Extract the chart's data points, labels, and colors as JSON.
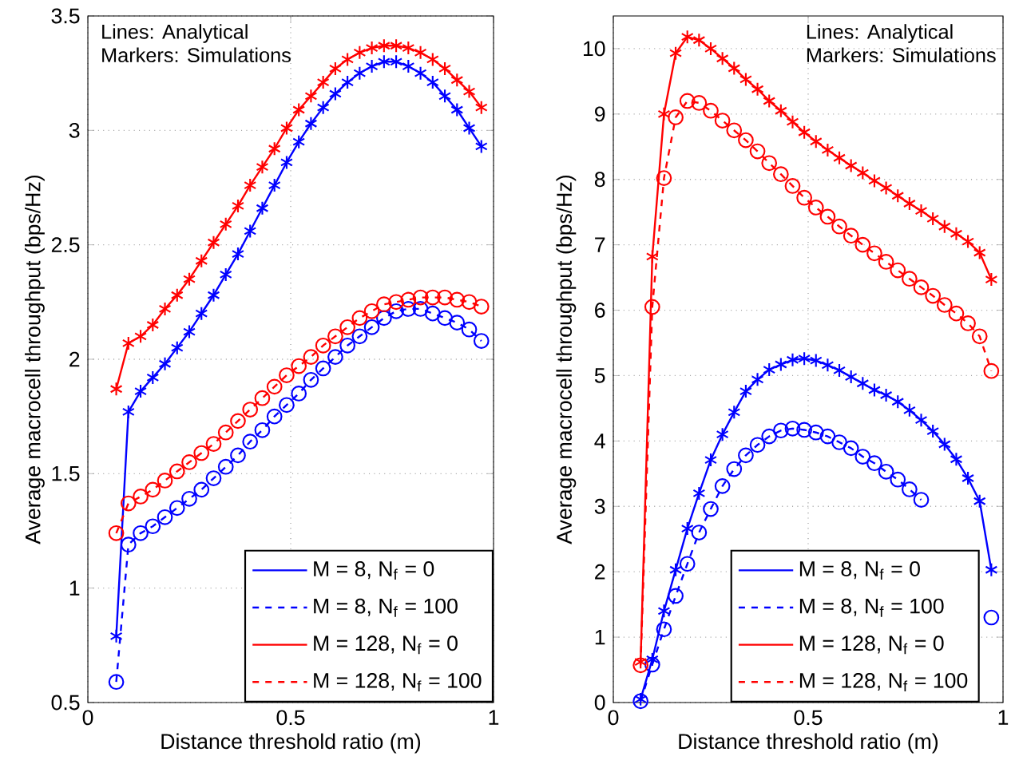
{
  "chart_data": [
    {
      "type": "line",
      "xlabel": "Distance threshold ratio (m)",
      "ylabel": "Average macrocell throughput (bps/Hz)",
      "annotations": [
        "Lines: Analytical",
        "Markers: Simulations"
      ],
      "x": [
        0.07,
        0.1,
        0.13,
        0.16,
        0.19,
        0.22,
        0.25,
        0.28,
        0.31,
        0.34,
        0.37,
        0.4,
        0.43,
        0.46,
        0.49,
        0.52,
        0.55,
        0.58,
        0.61,
        0.64,
        0.67,
        0.7,
        0.73,
        0.76,
        0.79,
        0.82,
        0.85,
        0.88,
        0.91,
        0.94,
        0.97
      ],
      "xlim": [
        0,
        1
      ],
      "xticks": [
        0,
        0.5,
        1
      ],
      "ylim": [
        0.5,
        3.5
      ],
      "yticks": [
        0.5,
        1,
        1.5,
        2,
        2.5,
        3,
        3.5
      ],
      "grid": true,
      "legend": "bottom right",
      "series": [
        {
          "name": "M = 8, N$_{f}$ = 0",
          "color": "#0000ff",
          "marker": "cross",
          "line_style": "solid",
          "values": [
            0.79,
            1.77,
            1.86,
            1.92,
            1.98,
            2.05,
            2.12,
            2.2,
            2.28,
            2.37,
            2.46,
            2.56,
            2.66,
            2.76,
            2.86,
            2.95,
            3.03,
            3.1,
            3.16,
            3.21,
            3.25,
            3.28,
            3.3,
            3.3,
            3.28,
            3.25,
            3.21,
            3.15,
            3.09,
            3.01,
            2.93
          ]
        },
        {
          "name": "M = 8, N$_{f}$ = 100",
          "color": "#0000ff",
          "marker": "circle",
          "line_style": "dashed",
          "values": [
            0.59,
            1.19,
            1.24,
            1.27,
            1.31,
            1.35,
            1.39,
            1.43,
            1.48,
            1.53,
            1.58,
            1.64,
            1.69,
            1.75,
            1.8,
            1.85,
            1.91,
            1.96,
            2.01,
            2.06,
            2.1,
            2.14,
            2.18,
            2.21,
            2.22,
            2.22,
            2.2,
            2.18,
            2.16,
            2.13,
            2.08
          ]
        },
        {
          "name": "M = 128, N$_{f}$ = 0",
          "color": "#ff0000",
          "marker": "cross",
          "line_style": "solid",
          "values": [
            1.87,
            2.07,
            2.1,
            2.15,
            2.22,
            2.28,
            2.35,
            2.43,
            2.51,
            2.59,
            2.67,
            2.76,
            2.84,
            2.92,
            3.01,
            3.09,
            3.15,
            3.21,
            3.27,
            3.31,
            3.34,
            3.36,
            3.37,
            3.37,
            3.36,
            3.34,
            3.31,
            3.27,
            3.22,
            3.17,
            3.1
          ]
        },
        {
          "name": "M = 128, N$_{f}$ = 100",
          "color": "#ff0000",
          "marker": "circle",
          "line_style": "dashed",
          "values": [
            1.24,
            1.37,
            1.4,
            1.43,
            1.47,
            1.51,
            1.55,
            1.59,
            1.63,
            1.68,
            1.73,
            1.78,
            1.83,
            1.88,
            1.93,
            1.97,
            2.01,
            2.06,
            2.1,
            2.14,
            2.18,
            2.21,
            2.24,
            2.25,
            2.26,
            2.27,
            2.27,
            2.27,
            2.26,
            2.25,
            2.23
          ]
        }
      ]
    },
    {
      "type": "line",
      "xlabel": "Distance threshold ratio (m)",
      "ylabel": "Average macrocell throughput (bps/Hz)",
      "annotations": [
        "Lines: Analytical",
        "Markers: Simulations"
      ],
      "x": [
        0.07,
        0.1,
        0.13,
        0.16,
        0.19,
        0.22,
        0.25,
        0.28,
        0.31,
        0.34,
        0.37,
        0.4,
        0.43,
        0.46,
        0.49,
        0.52,
        0.55,
        0.58,
        0.61,
        0.64,
        0.67,
        0.7,
        0.73,
        0.76,
        0.79,
        0.82,
        0.85,
        0.88,
        0.91,
        0.94,
        0.97
      ],
      "xlim": [
        0,
        1
      ],
      "xticks": [
        0,
        0.5,
        1
      ],
      "ylim": [
        0,
        10.5
      ],
      "yticks": [
        0,
        1,
        2,
        3,
        4,
        5,
        6,
        7,
        8,
        9,
        10
      ],
      "grid": true,
      "legend": "bottom right",
      "series": [
        {
          "name": "M = 8, N$_{f}$ = 0",
          "color": "#0000ff",
          "marker": "cross",
          "line_style": "solid",
          "values": [
            0.05,
            0.66,
            1.4,
            2.03,
            2.66,
            3.2,
            3.71,
            4.1,
            4.44,
            4.76,
            4.94,
            5.09,
            5.17,
            5.24,
            5.26,
            5.23,
            5.16,
            5.08,
            4.98,
            4.88,
            4.78,
            4.7,
            4.6,
            4.47,
            4.32,
            4.15,
            3.95,
            3.72,
            3.43,
            3.08,
            2.03
          ]
        },
        {
          "name": "M = 8, N$_{f}$ = 100",
          "color": "#0000ff",
          "marker": "circle",
          "line_style": "dashed",
          "values": [
            0.02,
            0.58,
            1.12,
            1.63,
            2.12,
            2.6,
            2.96,
            3.31,
            3.57,
            3.78,
            3.94,
            4.07,
            4.16,
            4.19,
            4.17,
            4.13,
            4.07,
            3.98,
            3.89,
            3.76,
            3.66,
            3.53,
            3.41,
            3.26,
            3.1,
            null,
            null,
            null,
            null,
            null,
            1.3
          ]
        },
        {
          "name": "M = 128, N$_{f}$ = 0",
          "color": "#ff0000",
          "marker": "cross",
          "line_style": "solid",
          "values": [
            0.62,
            6.82,
            9.0,
            9.93,
            10.18,
            10.13,
            10.0,
            9.85,
            9.7,
            9.53,
            9.38,
            9.2,
            9.05,
            8.88,
            8.72,
            8.58,
            8.45,
            8.33,
            8.21,
            8.1,
            7.98,
            7.87,
            7.75,
            7.63,
            7.52,
            7.4,
            7.28,
            7.17,
            7.05,
            6.88,
            6.47
          ]
        },
        {
          "name": "M = 128, N$_{f}$ = 100",
          "color": "#ff0000",
          "marker": "circle",
          "line_style": "dashed",
          "values": [
            0.57,
            6.05,
            8.02,
            8.95,
            9.2,
            9.17,
            9.05,
            8.9,
            8.75,
            8.6,
            8.43,
            8.25,
            8.08,
            7.9,
            7.72,
            7.57,
            7.43,
            7.28,
            7.14,
            7.0,
            6.87,
            6.74,
            6.61,
            6.48,
            6.35,
            6.22,
            6.08,
            5.95,
            5.8,
            5.6,
            5.07
          ]
        }
      ]
    }
  ]
}
